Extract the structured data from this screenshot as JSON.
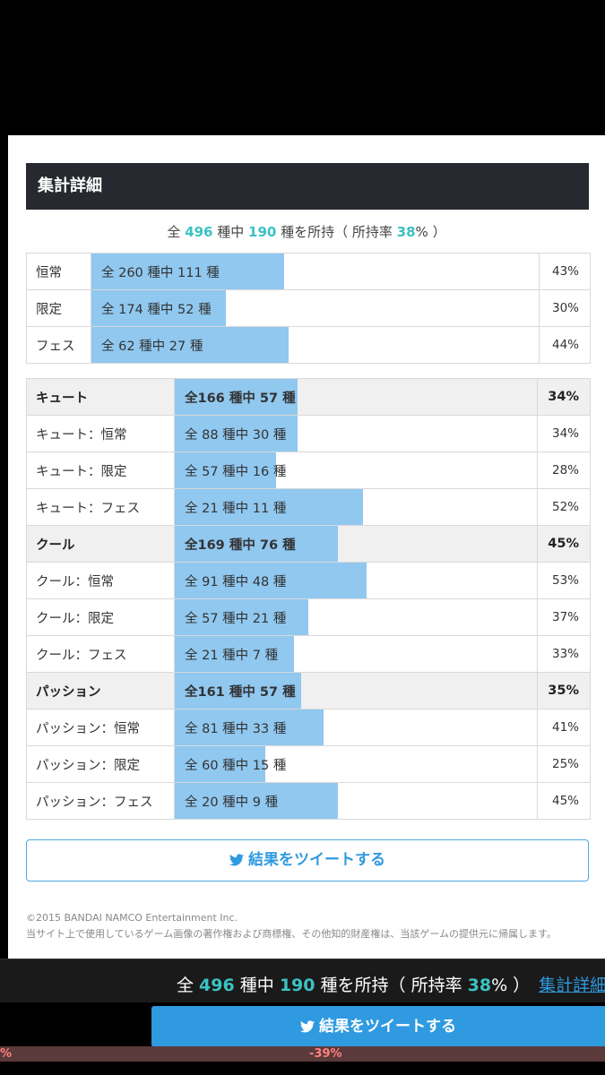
{
  "panel": {
    "title": "集計詳細",
    "summary": {
      "pre": "全 ",
      "total": "496",
      "mid": " 種中 ",
      "owned": "190",
      "post": " 種を所持（ 所持率 ",
      "rate": "38",
      "end": "% ）"
    }
  },
  "rarity_rows": [
    {
      "label": "恒常",
      "text": "全 260 種中 111 種",
      "pct": "43%",
      "fill": 0.43
    },
    {
      "label": "限定",
      "text": "全 174 種中 52 種",
      "pct": "30%",
      "fill": 0.3
    },
    {
      "label": "フェス",
      "text": "全 62 種中 27 種",
      "pct": "44%",
      "fill": 0.44
    }
  ],
  "type_rows": [
    {
      "label": "キュート",
      "text": "全166 種中 57 種",
      "pct": "34%",
      "fill": 0.34,
      "group": true
    },
    {
      "label": "キュート：恒常",
      "text": "全 88 種中 30 種",
      "pct": "34%",
      "fill": 0.34,
      "group": false
    },
    {
      "label": "キュート：限定",
      "text": "全 57 種中 16 種",
      "pct": "28%",
      "fill": 0.28,
      "group": false
    },
    {
      "label": "キュート：フェス",
      "text": "全 21 種中 11 種",
      "pct": "52%",
      "fill": 0.52,
      "group": false
    },
    {
      "label": "クール",
      "text": "全169 種中 76 種",
      "pct": "45%",
      "fill": 0.45,
      "group": true
    },
    {
      "label": "クール：恒常",
      "text": "全 91 種中 48 種",
      "pct": "53%",
      "fill": 0.53,
      "group": false
    },
    {
      "label": "クール：限定",
      "text": "全 57 種中 21 種",
      "pct": "37%",
      "fill": 0.37,
      "group": false
    },
    {
      "label": "クール：フェス",
      "text": "全 21 種中 7 種",
      "pct": "33%",
      "fill": 0.33,
      "group": false
    },
    {
      "label": "パッション",
      "text": "全161 種中 57 種",
      "pct": "35%",
      "fill": 0.35,
      "group": true
    },
    {
      "label": "パッション：恒常",
      "text": "全 81 種中 33 種",
      "pct": "41%",
      "fill": 0.41,
      "group": false
    },
    {
      "label": "パッション：限定",
      "text": "全 60 種中 15 種",
      "pct": "25%",
      "fill": 0.25,
      "group": false
    },
    {
      "label": "パッション：フェス",
      "text": "全 20 種中 9 種",
      "pct": "45%",
      "fill": 0.45,
      "group": false
    }
  ],
  "tweet_label": "結果をツイートする",
  "copyright": {
    "line1": "©2015 BANDAI NAMCO Entertainment Inc.",
    "line2": "当サイト上で使用しているゲーム画像の著作権および商標権、その他知的財産権は、当該ゲームの提供元に帰属します。"
  },
  "bottom": {
    "pre": "全 ",
    "total": "496",
    "mid": " 種中 ",
    "owned": "190",
    "post": " 種を所持（ 所持率 ",
    "rate": "38",
    "end": "% ）",
    "detail_link": "集計詳細",
    "tweet_label": "結果をツイートする",
    "strip_left": "%",
    "strip_mid": "-39%"
  },
  "colors": {
    "accent": "#3cc2c2",
    "bar": "#90c8f0",
    "twitter": "#2f9ae0",
    "header_bg": "#262a30"
  },
  "icons": {
    "tweet": "twitter-bird-icon"
  }
}
